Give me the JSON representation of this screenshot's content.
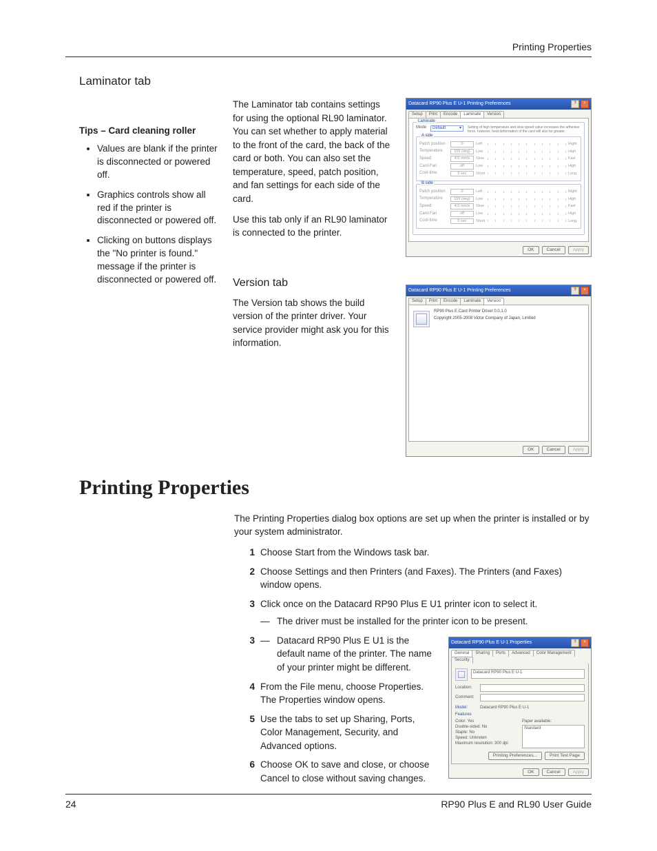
{
  "page": {
    "header_right": "Printing Properties",
    "footer_page": "24",
    "footer_guide": "RP90 Plus E and RL90 User Guide"
  },
  "laminator": {
    "heading": "Laminator tab",
    "tips_title": "Tips – Card cleaning roller",
    "tips": [
      "Values are blank if the printer is disconnected or powered off.",
      "Graphics controls show all red if the printer is disconnected or powered off.",
      "Clicking on buttons displays the \"No printer is found.\" message if the printer is disconnected or powered off."
    ],
    "para1": "The Laminator tab contains settings for using the optional RL90 laminator. You can set whether to apply material to the front of the card, the back of the card or both. You can also set the temperature, speed, patch position, and fan settings for each side of the card.",
    "para2": "Use this tab only if an RL90 laminator is connected to the printer.",
    "dialog": {
      "title": "Datacard RP90 Plus E U-1 Printing Preferences",
      "tabs": [
        "Setup",
        "Print",
        "Encode",
        "Laminate",
        "Version"
      ],
      "active_tab": 3,
      "legend_top": "Laminate",
      "mode_label": "Mode",
      "mode_value": "Default",
      "mode_note": "Setting of high temperature and slow speed value increases the adhesive force, however, heat deformation of the card will also be greater.",
      "legend_a": "A side",
      "legend_b": "B side",
      "rows": [
        {
          "label": "Patch position",
          "val": "0",
          "lo": "Left",
          "hi": "Right"
        },
        {
          "label": "Temperature",
          "val": "155 (deg)",
          "lo": "Low",
          "hi": "High"
        },
        {
          "label": "Speed",
          "val": "4.6 mm/s",
          "lo": "Slow",
          "hi": "Fast"
        },
        {
          "label": "Card-Fan",
          "val": "off",
          "lo": "Low",
          "hi": "High"
        },
        {
          "label": "Cool-time",
          "val": "0 sec",
          "lo": "Short",
          "hi": "Long"
        }
      ],
      "ok": "OK",
      "cancel": "Cancel",
      "apply": "Apply"
    }
  },
  "version": {
    "heading": "Version tab",
    "para": "The Version tab shows the build version of the printer driver. Your service provider might ask you for this information.",
    "dialog": {
      "title": "Datacard RP90 Plus E U-1 Printing Preferences",
      "tabs": [
        "Setup",
        "Print",
        "Encode",
        "Laminate",
        "Version"
      ],
      "active_tab": 4,
      "line1": "RP90 Plus E Card Printer Driver 0.0.1.0",
      "line2": "Copyright 2005-2008 Victor Company of Japan, Limited",
      "ok": "OK",
      "cancel": "Cancel",
      "apply": "Apply"
    }
  },
  "printing": {
    "heading": "Printing Properties",
    "intro": "The Printing Properties dialog box options are set up when the printer is installed or by your system administrator.",
    "steps": [
      {
        "text": "Choose Start from the Windows task bar."
      },
      {
        "text": "Choose Settings and then Printers (and Faxes). The Printers (and Faxes) window opens."
      },
      {
        "text": "Click once on the Datacard RP90 Plus E U1 printer icon to select it.",
        "sub": [
          "The driver must be installed for the printer icon to be present.",
          "Datacard RP90 Plus E U1 is the default name of the printer. The name of your printer might be different."
        ]
      },
      {
        "text": "From the File menu, choose Properties. The Properties window opens."
      },
      {
        "text": "Use the tabs to set up Sharing, Ports, Color Management, Security, and Advanced options."
      },
      {
        "text": "Choose OK to save and close, or choose Cancel to close without saving changes."
      }
    ],
    "dialog": {
      "title": "Datacard RP90 Plus E U-1 Properties",
      "tabs": [
        "General",
        "Sharing",
        "Ports",
        "Advanced",
        "Color Management",
        "Security"
      ],
      "active_tab": 0,
      "name_val": "Datacard RP90 Plus E U-1",
      "location": "Location:",
      "comment": "Comment:",
      "model": "Model:",
      "model_val": "Datacard RP90 Plus E U-1",
      "features": "Features",
      "details": [
        "Color: Yes",
        "Double-sided: No",
        "Staple: No",
        "Speed: Unknown",
        "Maximum resolution: 300 dpi"
      ],
      "paper_label": "Paper available:",
      "paper_val": "Standard",
      "pref_btn": "Printing Preferences...",
      "test_btn": "Print Test Page",
      "ok": "OK",
      "cancel": "Cancel",
      "apply": "Apply"
    }
  }
}
